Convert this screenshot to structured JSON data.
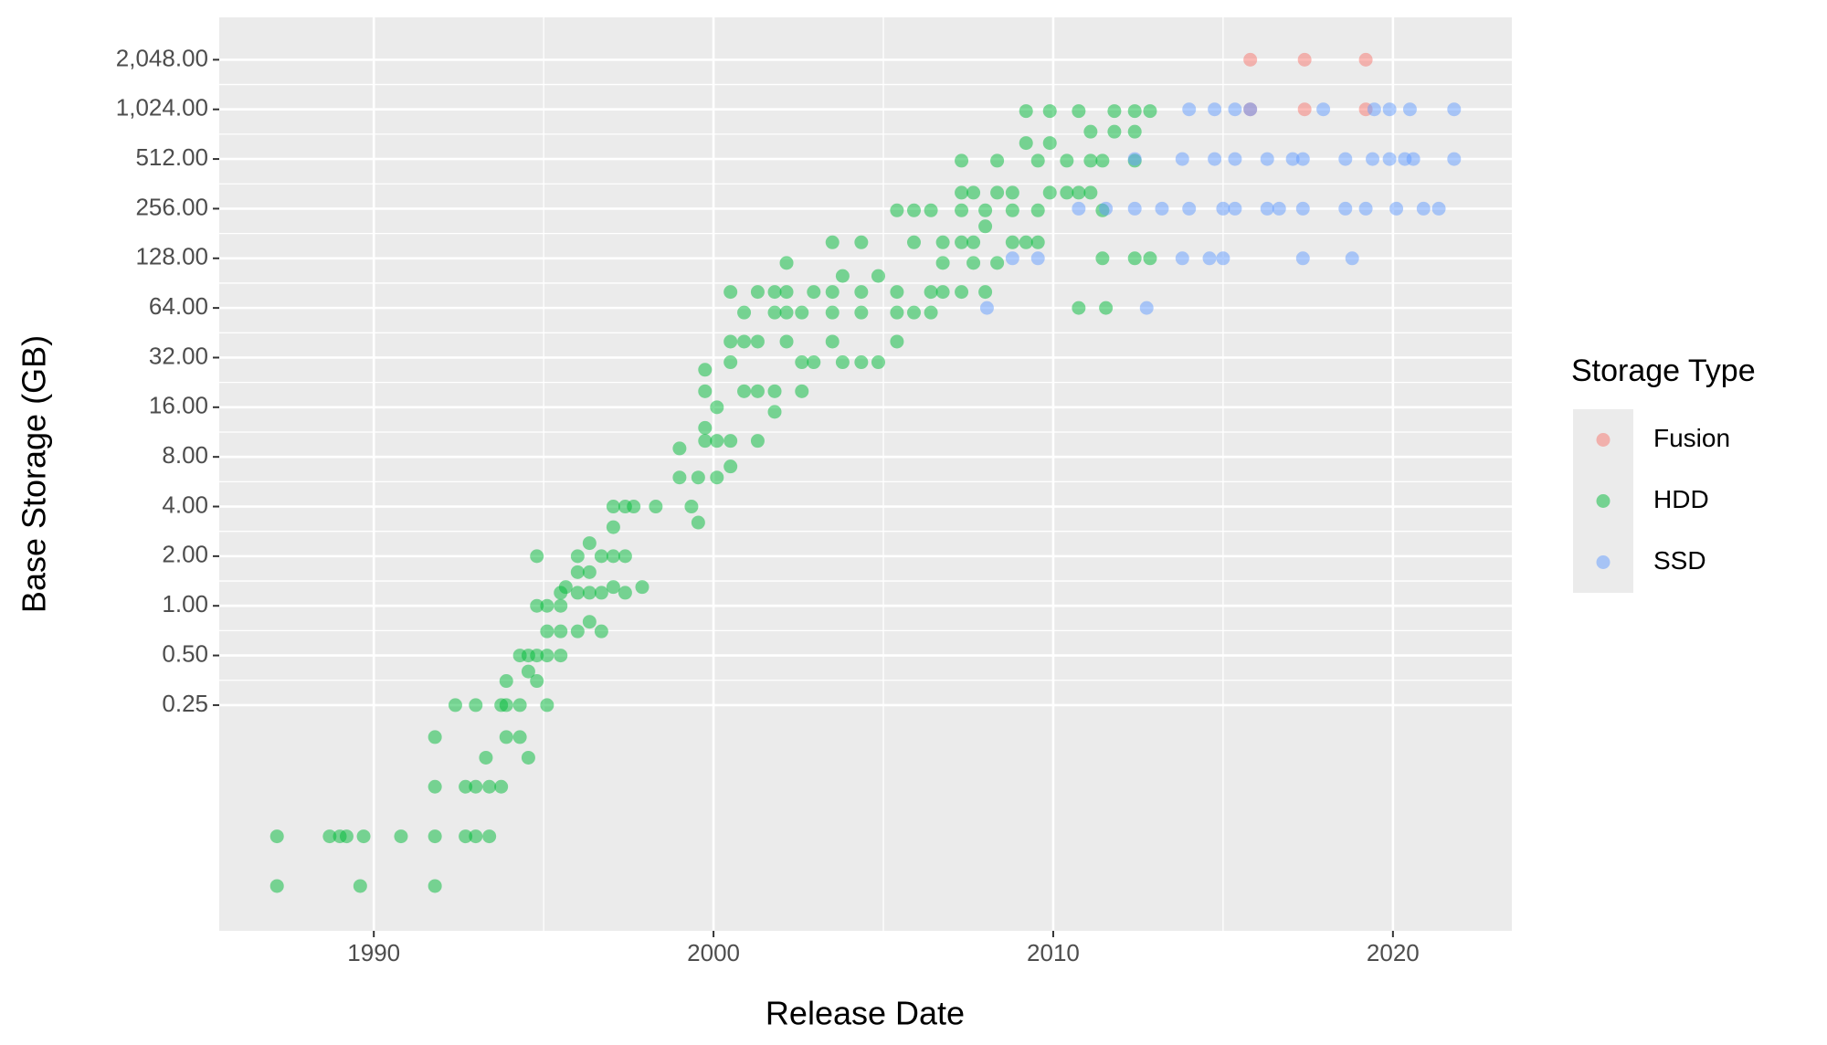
{
  "chart_data": {
    "type": "scatter",
    "x_label": "Release Date",
    "y_label": "Base Storage (GB)",
    "legend_title": "Storage Type",
    "legend": "right",
    "grid": true,
    "y_scale": "log",
    "xlim": [
      1985.45,
      2023.5
    ],
    "xticks": [
      1990,
      2000,
      2010,
      2020
    ],
    "ylim": [
      0.0107,
      3700
    ],
    "yticks": [
      0.25,
      {
        "value": 0.5,
        "label": "0.50"
      },
      {
        "value": 1,
        "label": "1.00"
      },
      {
        "value": 2,
        "label": "2.00"
      },
      {
        "value": 4,
        "label": "4.00"
      },
      {
        "value": 8,
        "label": "8.00"
      },
      {
        "value": 16,
        "label": "16.00"
      },
      {
        "value": 32,
        "label": "32.00"
      },
      {
        "value": 64,
        "label": "64.00"
      },
      {
        "value": 128,
        "label": "128.00"
      },
      {
        "value": 256,
        "label": "256.00"
      },
      {
        "value": 512,
        "label": "512.00"
      },
      {
        "value": 1024,
        "label": "1,024.00"
      },
      {
        "value": 2048,
        "label": "2,048.00"
      }
    ],
    "series": [
      {
        "name": "Fusion",
        "color": "#F8766D",
        "x": [
          2015.8,
          2015.8,
          2017.4,
          2017.4,
          2019.2,
          2019.2
        ],
        "values": [
          2048,
          1024,
          2048,
          1024,
          2048,
          1024
        ]
      },
      {
        "name": "HDD",
        "color": "#00BA38",
        "x": [
          1987.15,
          1987.15,
          1988.7,
          1989.0,
          1989.2,
          1989.7,
          1989.6,
          1990.8,
          1991.8,
          1991.8,
          1991.8,
          1991.8,
          1992.4,
          1992.7,
          1992.7,
          1993.0,
          1993.0,
          1993.0,
          1993.3,
          1993.4,
          1993.4,
          1993.75,
          1993.75,
          1993.9,
          1993.9,
          1993.9,
          1994.3,
          1994.3,
          1994.3,
          1994.55,
          1994.55,
          1994.55,
          1994.8,
          1994.8,
          1994.8,
          1994.8,
          1995.1,
          1995.1,
          1995.1,
          1995.1,
          1995.5,
          1995.5,
          1995.5,
          1995.5,
          1995.65,
          1996.0,
          1996.0,
          1996.0,
          1996.0,
          1996.35,
          1996.35,
          1996.35,
          1996.35,
          1996.7,
          1996.7,
          1996.7,
          1997.05,
          1997.05,
          1997.05,
          1997.05,
          1997.4,
          1997.4,
          1997.4,
          1997.65,
          1997.9,
          1998.3,
          1999.0,
          1999.0,
          1999.35,
          1999.55,
          1999.55,
          1999.75,
          1999.75,
          1999.75,
          1999.75,
          2000.1,
          2000.1,
          2000.1,
          2000.5,
          2000.5,
          2000.5,
          2000.5,
          2000.5,
          2000.9,
          2000.9,
          2000.9,
          2001.3,
          2001.3,
          2001.3,
          2001.3,
          2001.8,
          2001.8,
          2001.8,
          2001.8,
          2002.15,
          2002.15,
          2002.15,
          2002.15,
          2002.6,
          2002.6,
          2002.6,
          2002.95,
          2002.95,
          2003.5,
          2003.5,
          2003.5,
          2003.5,
          2003.8,
          2003.8,
          2004.35,
          2004.35,
          2004.35,
          2004.35,
          2004.85,
          2004.85,
          2005.4,
          2005.4,
          2005.4,
          2005.4,
          2005.9,
          2005.9,
          2005.9,
          2006.4,
          2006.4,
          2006.4,
          2006.75,
          2006.75,
          2006.75,
          2007.3,
          2007.3,
          2007.3,
          2007.3,
          2007.3,
          2007.65,
          2007.65,
          2007.65,
          2008.0,
          2008.0,
          2008.0,
          2008.35,
          2008.35,
          2008.35,
          2008.8,
          2008.8,
          2008.8,
          2009.2,
          2009.2,
          2009.2,
          2009.55,
          2009.55,
          2009.55,
          2009.9,
          2009.9,
          2009.9,
          2010.4,
          2010.4,
          2010.75,
          2010.75,
          2010.75,
          2011.1,
          2011.1,
          2011.1,
          2011.45,
          2011.45,
          2011.45,
          2011.55,
          2011.8,
          2011.8,
          2012.4,
          2012.4,
          2012.4,
          2012.4,
          2012.85,
          2012.85
        ],
        "values": [
          0.04,
          0.02,
          0.04,
          0.04,
          0.04,
          0.04,
          0.02,
          0.04,
          0.04,
          0.02,
          0.08,
          0.16,
          0.25,
          0.04,
          0.08,
          0.08,
          0.04,
          0.25,
          0.12,
          0.08,
          0.04,
          0.08,
          0.25,
          0.16,
          0.25,
          0.35,
          0.25,
          0.5,
          0.16,
          0.12,
          0.5,
          0.4,
          0.5,
          1,
          2,
          0.35,
          0.7,
          1,
          0.5,
          0.25,
          1.2,
          1,
          0.5,
          0.7,
          1.3,
          1.2,
          1.6,
          0.7,
          2,
          1.2,
          2.4,
          1.6,
          0.8,
          2,
          1.2,
          0.7,
          4,
          3,
          2,
          1.3,
          4,
          2,
          1.2,
          4,
          1.3,
          4,
          6,
          9,
          4,
          3.2,
          6,
          10,
          12,
          20,
          27,
          6,
          10,
          16,
          7,
          30,
          40,
          80,
          10,
          20,
          40,
          60,
          10,
          20,
          40,
          80,
          15,
          20,
          60,
          80,
          40,
          60,
          80,
          120,
          20,
          30,
          60,
          30,
          80,
          40,
          60,
          80,
          160,
          30,
          100,
          30,
          60,
          80,
          160,
          30,
          100,
          40,
          60,
          80,
          250,
          60,
          160,
          250,
          60,
          80,
          250,
          80,
          120,
          160,
          80,
          160,
          250,
          320,
          500,
          120,
          160,
          320,
          80,
          200,
          250,
          120,
          320,
          500,
          160,
          250,
          320,
          160,
          640,
          1000,
          160,
          250,
          500,
          320,
          1000,
          640,
          320,
          500,
          320,
          1000,
          64,
          500,
          750,
          320,
          500,
          250,
          128,
          64,
          750,
          1000,
          500,
          750,
          1000,
          128,
          1000,
          128
        ]
      },
      {
        "name": "SSD",
        "color": "#619CFF",
        "x": [
          2008.05,
          2008.8,
          2009.55,
          2010.75,
          2011.55,
          2012.4,
          2012.4,
          2012.75,
          2013.2,
          2013.8,
          2013.8,
          2014.0,
          2014.0,
          2014.6,
          2014.75,
          2014.75,
          2015.0,
          2015.0,
          2015.35,
          2015.35,
          2015.35,
          2015.8,
          2016.3,
          2016.3,
          2016.65,
          2017.05,
          2017.35,
          2017.35,
          2017.35,
          2017.95,
          2018.6,
          2018.6,
          2018.8,
          2019.2,
          2019.4,
          2019.45,
          2019.9,
          2019.9,
          2020.1,
          2020.35,
          2020.5,
          2020.6,
          2020.9,
          2021.35,
          2021.8,
          2021.8
        ],
        "values": [
          64,
          128,
          128,
          256,
          256,
          256,
          512,
          64,
          256,
          128,
          512,
          1024,
          256,
          128,
          512,
          1024,
          256,
          128,
          512,
          256,
          1024,
          1024,
          512,
          256,
          256,
          512,
          128,
          256,
          512,
          1024,
          256,
          512,
          128,
          256,
          512,
          1024,
          512,
          1024,
          256,
          512,
          1024,
          512,
          256,
          256,
          1024,
          512
        ]
      }
    ]
  }
}
